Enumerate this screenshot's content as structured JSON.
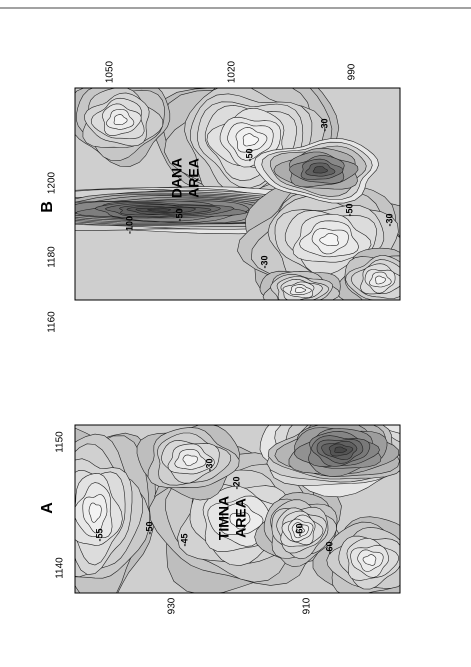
{
  "panels": [
    {
      "label": "A",
      "area_label": [
        "TIMNA",
        "AREA"
      ],
      "left_ticks": [
        "1140",
        "1150"
      ],
      "bottom_ticks": [
        "930",
        "910"
      ],
      "contour_labels": [
        "-55",
        "-50",
        "-45",
        "-30",
        "-20",
        "-60",
        "-60"
      ]
    },
    {
      "label": "B",
      "area_label": [
        "DANA",
        "AREA"
      ],
      "left_ticks": [
        "1160",
        "1180",
        "1200"
      ],
      "top_ticks": [
        "1050",
        "1020",
        "990"
      ],
      "contour_labels": [
        "-50",
        "-100",
        "-50",
        "-30",
        "-30",
        "-50",
        "-30"
      ]
    }
  ]
}
